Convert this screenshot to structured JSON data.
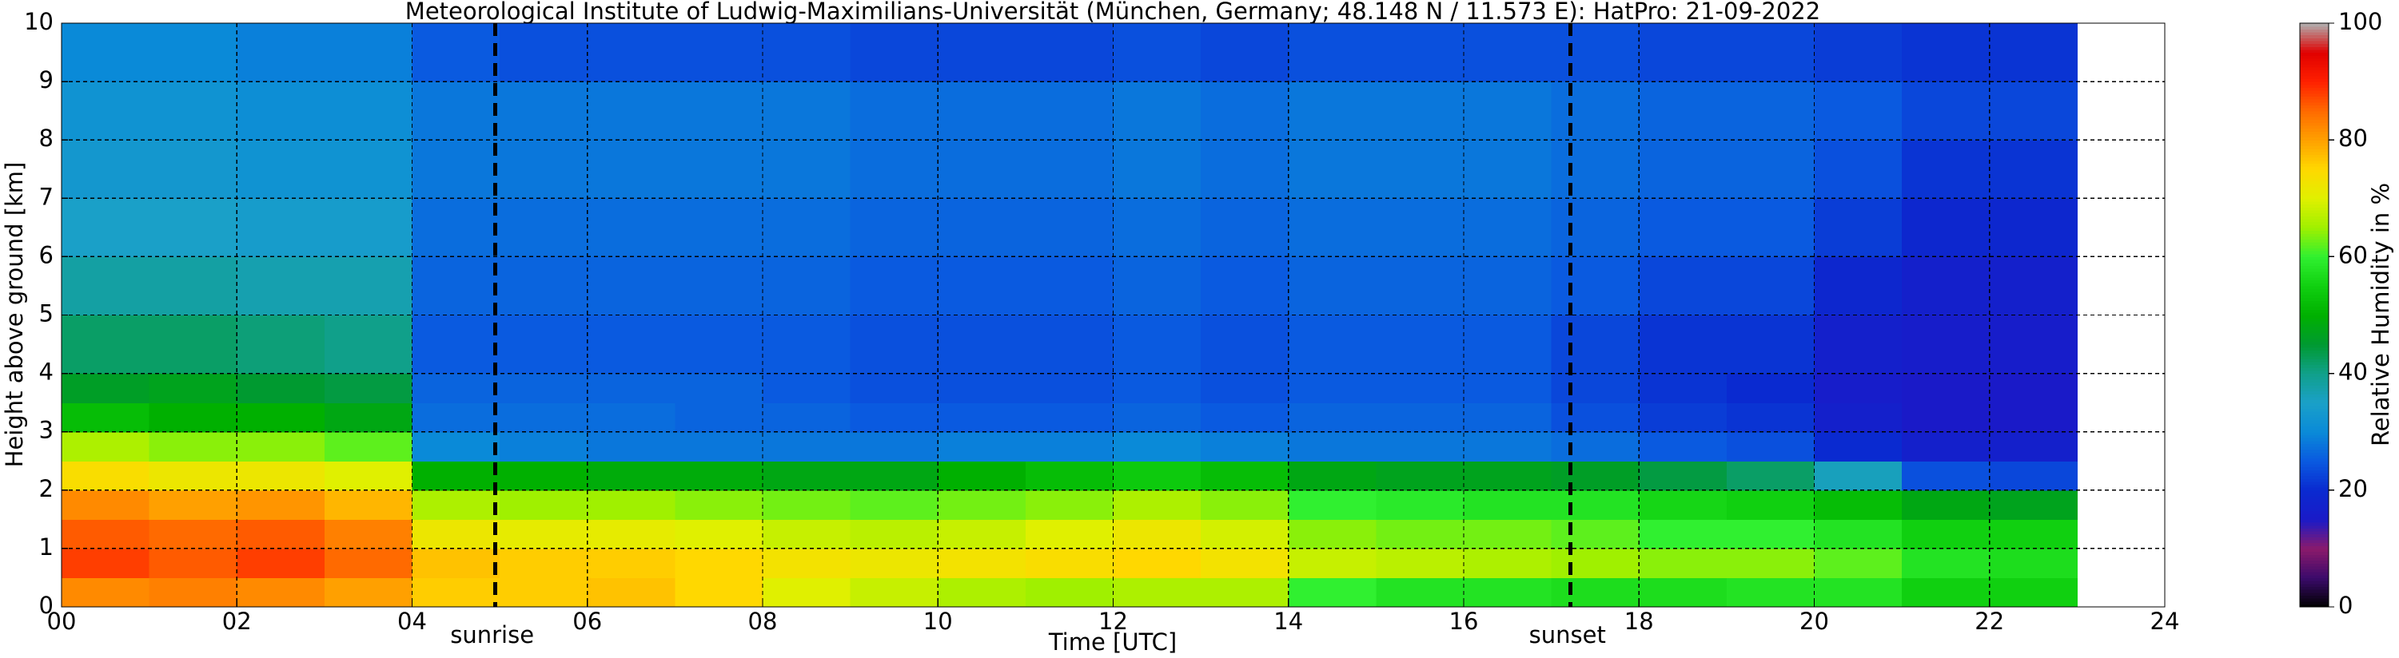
{
  "chart_data": {
    "type": "heatmap",
    "title": "Meteorological Institute of Ludwig-Maximilians-Universität (München, Germany; 48.148 N / 11.573 E):    HatPro: 21-09-2022",
    "x_label": "Time [UTC]",
    "y_label": "Height above ground [km]",
    "colorbar_label": "Relative Humidity in %",
    "xlim": [
      0,
      24
    ],
    "xticks": [
      {
        "value": 0,
        "label": "00"
      },
      {
        "value": 2,
        "label": "02"
      },
      {
        "value": 4,
        "label": "04"
      },
      {
        "value": 6,
        "label": "06"
      },
      {
        "value": 8,
        "label": "08"
      },
      10,
      12,
      14,
      16,
      18,
      20,
      22,
      24
    ],
    "ylim": [
      0,
      10
    ],
    "yticks": [
      0,
      1,
      2,
      3,
      4,
      5,
      6,
      7,
      8,
      9,
      10
    ],
    "clim": [
      0,
      100
    ],
    "cticks": [
      0,
      20,
      40,
      60,
      80,
      100
    ],
    "grid": true,
    "colormap": [
      "#000000",
      "#3b0a6b",
      "#8b1a6b",
      "#1a1ac8",
      "#0a2ad0",
      "#0a5ae0",
      "#0a8ad8",
      "#1aa0c8",
      "#10a08a",
      "#009a30",
      "#00b000",
      "#10d010",
      "#30f030",
      "#a0f000",
      "#e0f000",
      "#ffd800",
      "#ffa000",
      "#ff6a00",
      "#ff2000",
      "#e00000",
      "#b0b0b0"
    ],
    "vlines": [
      {
        "x": 4.95,
        "label": "sunrise"
      },
      {
        "x": 17.22,
        "label": "sunset"
      }
    ],
    "x_bins": [
      0,
      1,
      2,
      3,
      4,
      5,
      6,
      7,
      8,
      9,
      10,
      11,
      12,
      13,
      14,
      15,
      16,
      17,
      18,
      19,
      20,
      21,
      22,
      23
    ],
    "y_bins": [
      0,
      0.5,
      1,
      1.5,
      2,
      2.5,
      3,
      3.5,
      4,
      5,
      6,
      7,
      8,
      9,
      10
    ],
    "z": [
      [
        82,
        83,
        82,
        80,
        76,
        76,
        77,
        75,
        70,
        68,
        66,
        65,
        66,
        66,
        60,
        58,
        58,
        57,
        57,
        58,
        58,
        55,
        55
      ],
      [
        88,
        86,
        88,
        85,
        77,
        76,
        76,
        75,
        73,
        72,
        73,
        74,
        75,
        73,
        68,
        67,
        66,
        65,
        64,
        64,
        62,
        58,
        57
      ],
      [
        86,
        85,
        86,
        83,
        72,
        71,
        71,
        70,
        68,
        67,
        68,
        70,
        72,
        69,
        64,
        63,
        63,
        62,
        60,
        60,
        58,
        55,
        55
      ],
      [
        82,
        80,
        81,
        78,
        66,
        65,
        65,
        64,
        63,
        62,
        63,
        64,
        66,
        64,
        60,
        59,
        58,
        58,
        56,
        55,
        52,
        48,
        47
      ],
      [
        74,
        72,
        72,
        70,
        50,
        50,
        49,
        49,
        48,
        48,
        50,
        52,
        54,
        52,
        48,
        47,
        47,
        46,
        44,
        42,
        36,
        24,
        23
      ],
      [
        66,
        64,
        64,
        62,
        30,
        29,
        28,
        28,
        28,
        28,
        29,
        29,
        30,
        29,
        28,
        28,
        28,
        27,
        25,
        24,
        20,
        17,
        17
      ],
      [
        52,
        50,
        50,
        48,
        27,
        27,
        27,
        26,
        26,
        25,
        25,
        25,
        26,
        25,
        26,
        26,
        26,
        24,
        22,
        21,
        17,
        15,
        15
      ],
      [
        46,
        47,
        45,
        44,
        26,
        26,
        26,
        26,
        25,
        24,
        24,
        24,
        25,
        24,
        25,
        25,
        25,
        23,
        21,
        20,
        16,
        15,
        15
      ],
      [
        42,
        42,
        41,
        40,
        25,
        25,
        25,
        25,
        25,
        24,
        24,
        24,
        25,
        24,
        25,
        25,
        25,
        23,
        21,
        21,
        17,
        16,
        16
      ],
      [
        38,
        38,
        37,
        37,
        26,
        26,
        26,
        26,
        26,
        25,
        25,
        25,
        26,
        25,
        26,
        26,
        26,
        25,
        23,
        23,
        19,
        17,
        17
      ],
      [
        35,
        35,
        34,
        34,
        27,
        27,
        27,
        27,
        27,
        26,
        26,
        26,
        27,
        26,
        27,
        27,
        27,
        26,
        25,
        25,
        22,
        19,
        19
      ],
      [
        33,
        33,
        32,
        32,
        28,
        28,
        28,
        28,
        28,
        27,
        27,
        27,
        28,
        27,
        28,
        28,
        28,
        27,
        26,
        26,
        24,
        21,
        21
      ],
      [
        32,
        32,
        31,
        31,
        28,
        28,
        28,
        28,
        28,
        27,
        27,
        27,
        28,
        27,
        28,
        28,
        28,
        27,
        26,
        26,
        25,
        23,
        23
      ],
      [
        30,
        30,
        29,
        29,
        25,
        24,
        24,
        24,
        24,
        23,
        23,
        23,
        24,
        23,
        24,
        24,
        24,
        24,
        23,
        23,
        22,
        21,
        21
      ]
    ]
  }
}
